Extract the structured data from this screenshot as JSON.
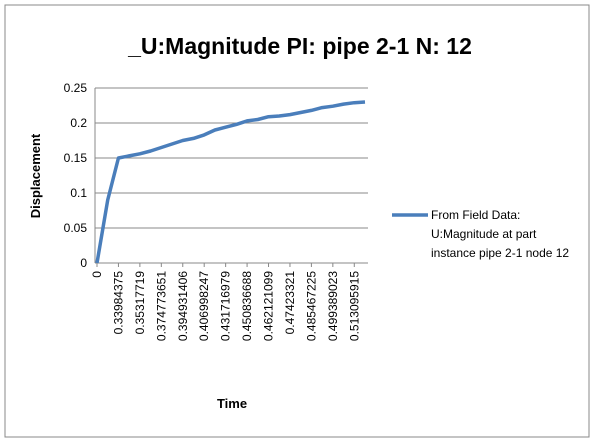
{
  "chart_data": {
    "type": "line",
    "title": "_U:Magnitude PI: pipe 2-1 N: 12",
    "x_label": "Time",
    "y_label": "Displacement",
    "categories": [
      "0",
      null,
      "0.33984375",
      null,
      "0.35317719",
      null,
      "0.374773651",
      null,
      "0.394931406",
      null,
      "0.406998247",
      null,
      "0.431716979",
      null,
      "0.450836688",
      null,
      "0.462121099",
      null,
      "0.47423321",
      null,
      "0.485467225",
      null,
      "0.499389023",
      null,
      "0.513095915",
      null
    ],
    "series": [
      {
        "name": "From Field Data: U:Magnitude  at part instance pipe 2-1 node 12",
        "color": "#4a7ebb",
        "values": [
          0,
          0.09,
          0.15,
          0.153,
          0.156,
          0.16,
          0.165,
          0.17,
          0.175,
          0.178,
          0.183,
          0.19,
          0.194,
          0.198,
          0.203,
          0.205,
          0.209,
          0.21,
          0.212,
          0.215,
          0.218,
          0.222,
          0.224,
          0.227,
          0.229,
          0.23
        ]
      }
    ],
    "ylim": [
      0,
      0.25
    ],
    "yticks": [
      0,
      0.05,
      0.1,
      0.15,
      0.2,
      0.25
    ],
    "grid": true,
    "legend": "right"
  }
}
